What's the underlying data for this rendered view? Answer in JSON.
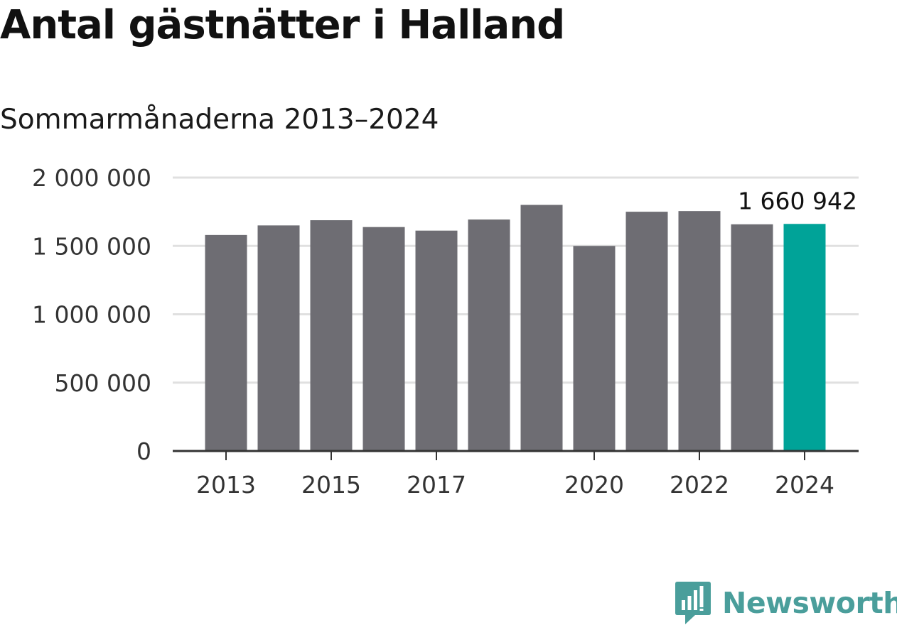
{
  "header": {
    "title": "Antal gästnätter i Halland",
    "subtitle": "Sommarmånaderna 2013–2024"
  },
  "chart_data": {
    "type": "bar",
    "categories": [
      "2013",
      "2014",
      "2015",
      "2016",
      "2017",
      "2018",
      "2019",
      "2020",
      "2021",
      "2022",
      "2023",
      "2024"
    ],
    "values": [
      1580000,
      1650000,
      1688000,
      1638000,
      1612000,
      1693000,
      1800000,
      1500000,
      1750000,
      1755000,
      1658000,
      1660942
    ],
    "ylim": [
      0,
      2000000
    ],
    "yticks": [
      0,
      500000,
      1000000,
      1500000,
      2000000
    ],
    "ytick_labels": [
      "0",
      "500 000",
      "1 000 000",
      "1 500 000",
      "2 000 000"
    ],
    "xtick_labels": [
      "2013",
      "2015",
      "2017",
      "2020",
      "2022",
      "2024"
    ],
    "annotation": {
      "category": "2024",
      "text": "1 660 942"
    },
    "grid": true,
    "colors": {
      "bar": "#6e6d73",
      "highlight": "#00a398",
      "grid": "#e0e0e0",
      "axis": "#333333",
      "tick_text": "#333333"
    },
    "highlight_category": "2024",
    "xlabel": "",
    "ylabel": ""
  },
  "brand": {
    "name": "Newsworthy",
    "icon": "newsworthy-logo-icon",
    "color": "#4a9e9b"
  }
}
